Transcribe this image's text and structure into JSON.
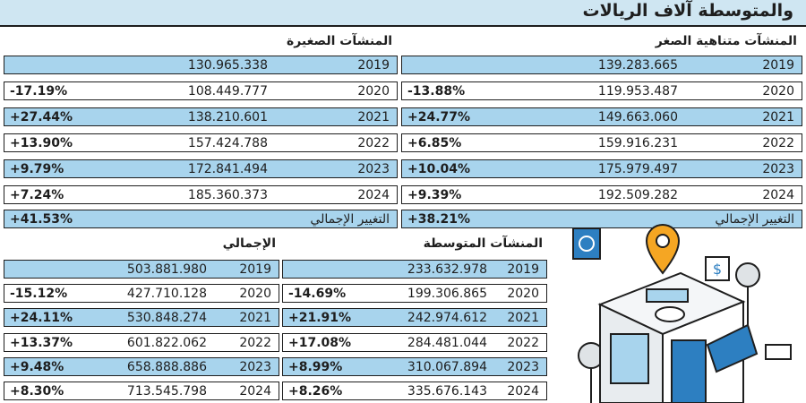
{
  "header": {
    "title": "والمتوسطة آلاف الريالات"
  },
  "total_change_label": "التغيير الإجمالي",
  "tables": {
    "micro": {
      "title": "المنشآت متناهية الصغر",
      "rows": [
        {
          "year": "2019",
          "value": "139.283.665",
          "change": ""
        },
        {
          "year": "2020",
          "value": "119.953.487",
          "change": "-13.88%"
        },
        {
          "year": "2021",
          "value": "149.663.060",
          "change": "+24.77%"
        },
        {
          "year": "2022",
          "value": "159.916.231",
          "change": "+6.85%"
        },
        {
          "year": "2023",
          "value": "175.979.497",
          "change": "+10.04%"
        },
        {
          "year": "2024",
          "value": "192.509.282",
          "change": "+9.39%"
        }
      ],
      "total_change": "+38.21%"
    },
    "small": {
      "title": "المنشآت الصغيرة",
      "rows": [
        {
          "year": "2019",
          "value": "130.965.338",
          "change": ""
        },
        {
          "year": "2020",
          "value": "108.449.777",
          "change": "-17.19%"
        },
        {
          "year": "2021",
          "value": "138.210.601",
          "change": "+27.44%"
        },
        {
          "year": "2022",
          "value": "157.424.788",
          "change": "+13.90%"
        },
        {
          "year": "2023",
          "value": "172.841.494",
          "change": "+9.79%"
        },
        {
          "year": "2024",
          "value": "185.360.373",
          "change": "+7.24%"
        }
      ],
      "total_change": "+41.53%"
    },
    "medium": {
      "title": "المنشآت المتوسطة",
      "rows": [
        {
          "year": "2019",
          "value": "233.632.978",
          "change": ""
        },
        {
          "year": "2020",
          "value": "199.306.865",
          "change": "-14.69%"
        },
        {
          "year": "2021",
          "value": "242.974.612",
          "change": "+21.91%"
        },
        {
          "year": "2022",
          "value": "284.481.044",
          "change": "+17.08%"
        },
        {
          "year": "2023",
          "value": "310.067.894",
          "change": "+8.99%"
        },
        {
          "year": "2024",
          "value": "335.676.143",
          "change": "+8.26%"
        }
      ]
    },
    "total": {
      "title": "الإجمالي",
      "rows": [
        {
          "year": "2019",
          "value": "503.881.980",
          "change": ""
        },
        {
          "year": "2020",
          "value": "427.710.128",
          "change": "-15.12%"
        },
        {
          "year": "2021",
          "value": "530.848.274",
          "change": "+24.11%"
        },
        {
          "year": "2022",
          "value": "601.822.062",
          "change": "+13.37%"
        },
        {
          "year": "2023",
          "value": "658.888.886",
          "change": "+9.48%"
        },
        {
          "year": "2024",
          "value": "713.545.798",
          "change": "+8.30%"
        }
      ]
    }
  },
  "colors": {
    "header_bg": "#cfe6f2",
    "row_alt": "#a8d4ed",
    "border": "#1e1e1e",
    "pin": "#f5a623"
  },
  "illustration": {
    "icons": [
      "shop-icon",
      "location-pin-icon",
      "chart-sign-icon",
      "dollar-sign-icon",
      "tree-icon"
    ]
  }
}
